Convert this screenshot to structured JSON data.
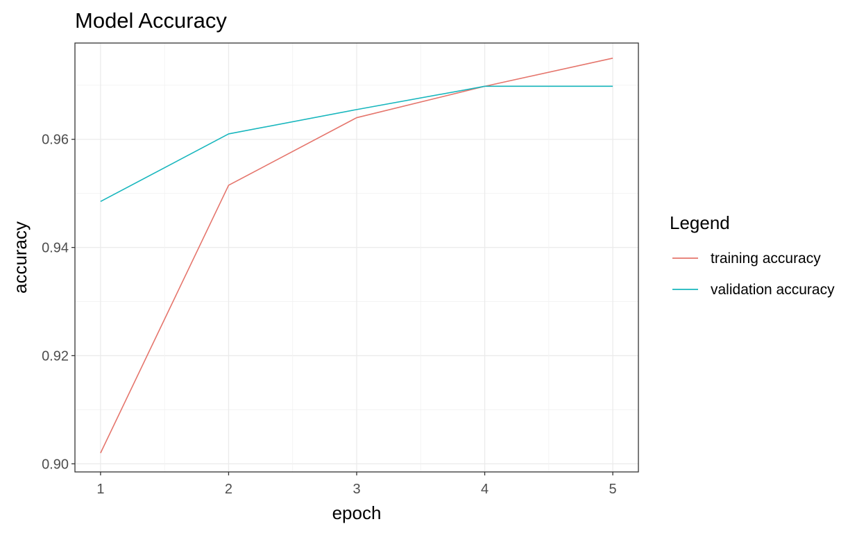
{
  "chart_data": {
    "type": "line",
    "title": "Model Accuracy",
    "xlabel": "epoch",
    "ylabel": "accuracy",
    "x": [
      1,
      2,
      3,
      4,
      5
    ],
    "x_ticks": [
      "1",
      "2",
      "3",
      "4",
      "5"
    ],
    "y_ticks": [
      "0.90",
      "0.92",
      "0.94",
      "0.96"
    ],
    "y_tick_values": [
      0.9,
      0.92,
      0.94,
      0.96
    ],
    "xlim": [
      0.8,
      5.2
    ],
    "ylim": [
      0.8985,
      0.9778
    ],
    "grid": true,
    "legend": {
      "title": "Legend",
      "position": "right"
    },
    "series": [
      {
        "name": "training accuracy",
        "color": "#e5756c",
        "values": [
          0.902,
          0.9515,
          0.964,
          0.9698,
          0.975
        ]
      },
      {
        "name": "validation accuracy",
        "color": "#17b6bd",
        "values": [
          0.9485,
          0.961,
          0.9655,
          0.9698,
          0.9698
        ]
      }
    ]
  }
}
